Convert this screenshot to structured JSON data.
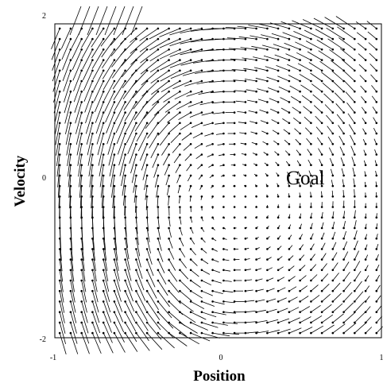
{
  "chart_data": {
    "type": "quiver",
    "xlabel": "Position",
    "ylabel": "Velocity",
    "xlim": [
      -1,
      1
    ],
    "ylim": [
      -2,
      2
    ],
    "xticks": [
      "-1",
      "0",
      "1"
    ],
    "yticks": [
      "-2",
      "0",
      "2"
    ],
    "grid": false,
    "legend": "none",
    "grid_points": {
      "x_count": 30,
      "y_count": 30
    },
    "vector_field": "rotational flow circulating clockwise around a center near (0.1, -0.3); long steep segments at negative positions, short dots near the center and along the right edge",
    "annotations": [
      {
        "text": "Goal",
        "x": 0.55,
        "y": 0
      }
    ]
  }
}
